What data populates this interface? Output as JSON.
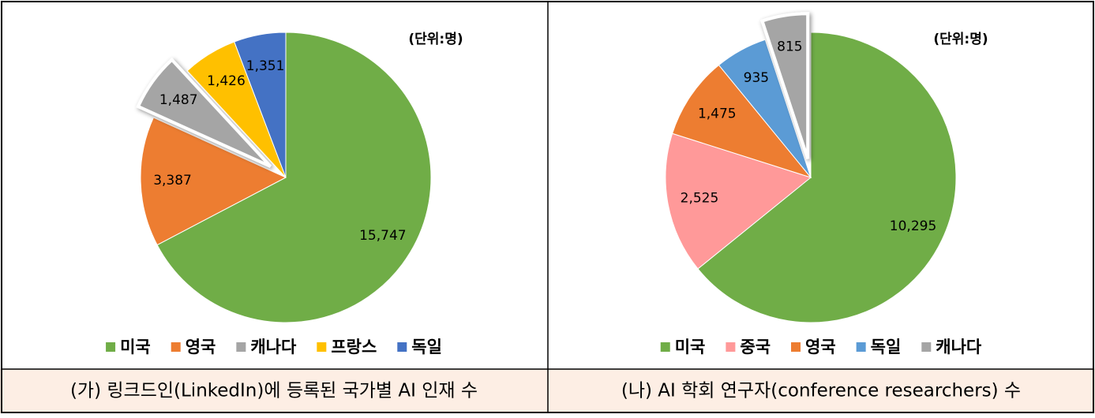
{
  "chart_data": [
    {
      "type": "pie",
      "annotation": "(단위:명)",
      "caption": "(가) 링크드인(LinkedIn)에 등록된 국가별 AI 인재 수",
      "categories": [
        "미국",
        "영국",
        "캐나다",
        "프랑스",
        "독일"
      ],
      "values": [
        15747,
        3387,
        1487,
        1426,
        1351
      ],
      "value_labels": [
        "15,747",
        "3,387",
        "1,487",
        "1,426",
        "1,351"
      ],
      "colors": [
        "#70ad47",
        "#ed7d31",
        "#a5a5a5",
        "#ffc000",
        "#4472c4"
      ],
      "explode": [
        false,
        false,
        true,
        false,
        false
      ],
      "legend": "bottom"
    },
    {
      "type": "pie",
      "annotation": "(단위:명)",
      "caption": "(나) AI 학회 연구자(conference researchers) 수",
      "categories": [
        "미국",
        "중국",
        "영국",
        "독일",
        "캐나다"
      ],
      "values": [
        10295,
        2525,
        1475,
        935,
        815
      ],
      "value_labels": [
        "10,295",
        "2,525",
        "1,475",
        "935",
        "815"
      ],
      "colors": [
        "#70ad47",
        "#ff9999",
        "#ed7d31",
        "#5b9bd5",
        "#a5a5a5"
      ],
      "explode": [
        false,
        false,
        false,
        false,
        true
      ],
      "legend": "bottom"
    }
  ]
}
